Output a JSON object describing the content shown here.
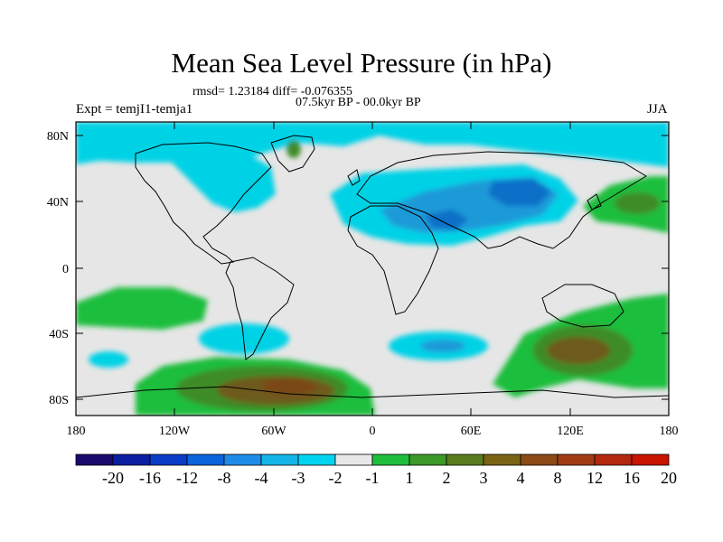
{
  "title": "Mean Sea Level Pressure (in hPa)",
  "stats": "rmsd= 1.23184  diff= -0.076355",
  "period": "07.5kyr BP - 00.0kyr BP",
  "experiment": "Expt = temjI1-temja1",
  "season": "JJA",
  "map": {
    "lat_ticks": [
      "80N",
      "40N",
      "0",
      "40S",
      "80S"
    ],
    "lon_ticks": [
      "180",
      "120W",
      "60W",
      "0",
      "60E",
      "120E",
      "180"
    ]
  },
  "colorbar": {
    "colors": [
      "#1a0a6e",
      "#0c1ea0",
      "#0a3cc8",
      "#0a64dc",
      "#1e8ce6",
      "#14b4e6",
      "#00d4f0",
      "#e8e8e8",
      "#1ebe3c",
      "#3c9a28",
      "#5a7c1e",
      "#7a6414",
      "#8c4a14",
      "#a03c14",
      "#b42810",
      "#c81400"
    ],
    "labels": [
      "-20",
      "-16",
      "-12",
      "-8",
      "-4",
      "-3",
      "-2",
      "-1",
      "1",
      "2",
      "3",
      "4",
      "8",
      "12",
      "16",
      "20"
    ]
  },
  "colors": {
    "land_neutral": "#e6e6e6",
    "neg1": "#00d2e6",
    "neg2": "#1e9ad8",
    "neg3": "#1070c8",
    "pos1": "#1ebe3c",
    "pos2": "#3c8c28",
    "pos3": "#6e5a1e",
    "pos4": "#7a4616"
  }
}
